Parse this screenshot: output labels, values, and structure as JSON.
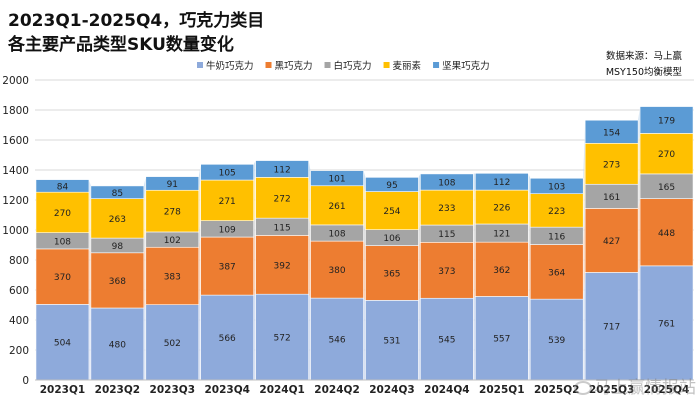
{
  "header": {
    "title_line1": "2023Q1-2025Q4，巧克力类目",
    "title_line2": "各主要产品类型SKU数量变化",
    "source_line1": "数据来源：马上赢",
    "source_line2": "MSY150均衡模型"
  },
  "watermark": {
    "text": "马上赢情报站",
    "icon": "weibo-logo-icon"
  },
  "chart_data": {
    "type": "bar",
    "stacked": true,
    "title": "2023Q1-2025Q4，巧克力类目 各主要产品类型SKU数量变化",
    "xlabel": "",
    "ylabel": "",
    "ylim": [
      0,
      2000
    ],
    "yticks": [
      0,
      200,
      400,
      600,
      800,
      1000,
      1200,
      1400,
      1600,
      1800,
      2000
    ],
    "grid": true,
    "legend_position": "top",
    "categories": [
      "2023Q1",
      "2023Q2",
      "2023Q3",
      "2023Q4",
      "2024Q1",
      "2024Q2",
      "2024Q3",
      "2024Q4",
      "2025Q1",
      "2025Q2",
      "2025Q3",
      "2025Q4"
    ],
    "series": [
      {
        "name": "牛奶巧克力",
        "color": "#8eaadb",
        "band_color": "#c9d6ee",
        "values": [
          504,
          480,
          502,
          566,
          572,
          546,
          531,
          545,
          557,
          539,
          717,
          761
        ]
      },
      {
        "name": "黑巧克力",
        "color": "#ed7d31",
        "band_color": "#f6c3a2",
        "values": [
          370,
          368,
          383,
          387,
          392,
          380,
          365,
          373,
          362,
          364,
          427,
          448
        ]
      },
      {
        "name": "白巧克力",
        "color": "#a5a5a5",
        "band_color": "#d6d6d6",
        "values": [
          108,
          98,
          102,
          109,
          115,
          108,
          106,
          115,
          121,
          116,
          161,
          165
        ]
      },
      {
        "name": "麦丽素",
        "color": "#ffc000",
        "band_color": "#ffe49c",
        "values": [
          270,
          263,
          278,
          271,
          272,
          261,
          254,
          233,
          226,
          223,
          273,
          270
        ]
      },
      {
        "name": "坚果巧克力",
        "color": "#5b9bd5",
        "band_color": "#c2d9ef",
        "values": [
          84,
          85,
          91,
          105,
          112,
          101,
          95,
          108,
          112,
          103,
          154,
          179
        ]
      }
    ]
  }
}
